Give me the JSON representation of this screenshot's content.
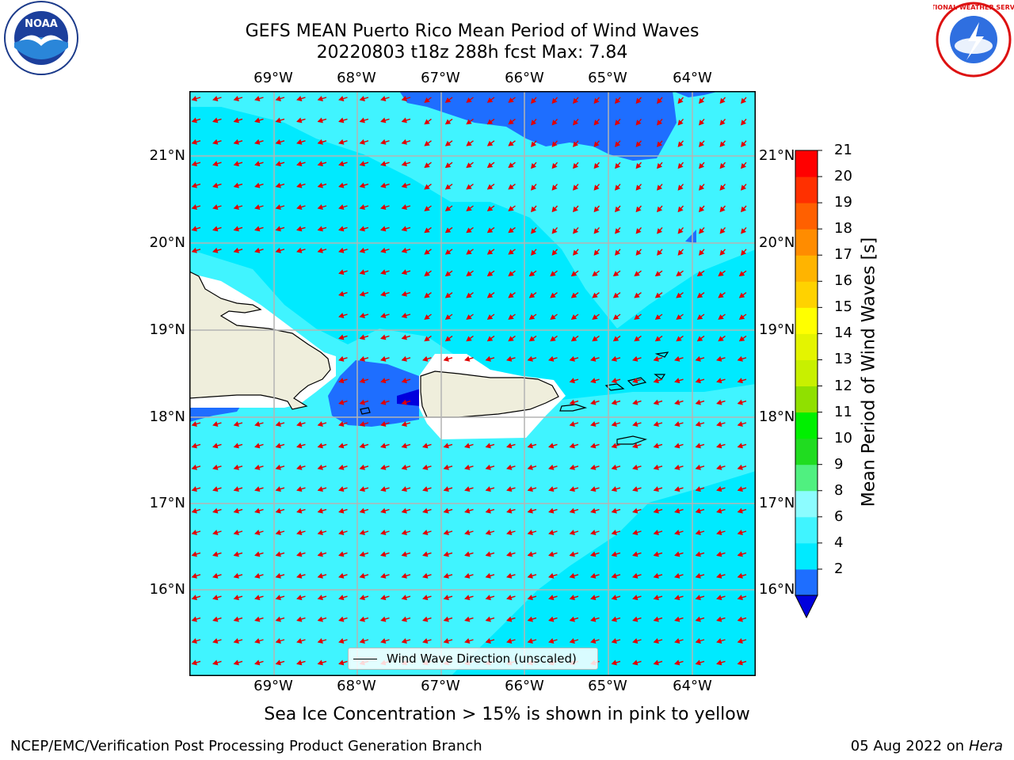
{
  "title_line1": "GEFS MEAN Puerto Rico Mean Period of Wind Waves",
  "title_line2": "20220803 t18z 288h fcst   Max: 7.84",
  "lon_labels": [
    "69°W",
    "68°W",
    "67°W",
    "66°W",
    "65°W",
    "64°W"
  ],
  "lat_labels": [
    "21°N",
    "20°N",
    "19°N",
    "18°N",
    "17°N",
    "16°N"
  ],
  "colorbar": {
    "label": "Mean Period of Wind Waves [s]",
    "ticks": [
      "21",
      "20",
      "19",
      "18",
      "17",
      "16",
      "15",
      "14",
      "13",
      "12",
      "11",
      "10",
      "9",
      "8",
      "6",
      "4",
      "2"
    ],
    "colors": [
      "#0000dd",
      "#1e6eff",
      "#00eaff",
      "#40f4ff",
      "#8cfcff",
      "#50f080",
      "#20dc20",
      "#00f000",
      "#90e000",
      "#c8f000",
      "#e4f400",
      "#ffff00",
      "#ffd200",
      "#ffb400",
      "#ff8c00",
      "#ff6000",
      "#ff3000",
      "#ff0000"
    ]
  },
  "legend_label": "Wind Wave Direction (unscaled)",
  "subtitle": "Sea Ice Concentration > 15% is shown in pink to yellow",
  "footer_left": "NCEP/EMC/Verification Post Processing Product Generation Branch",
  "footer_date": "05 Aug 2022 on",
  "footer_host": "Hera",
  "logos": {
    "left": "NOAA",
    "right": "NATIONAL WEATHER SERVICE"
  }
}
